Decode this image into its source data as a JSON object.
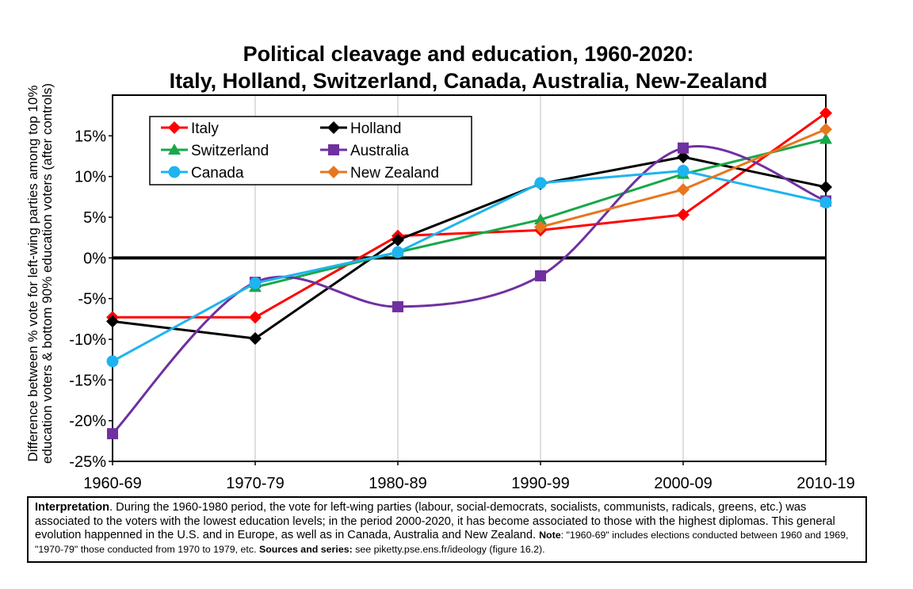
{
  "chart_data": {
    "type": "line",
    "title_lines": [
      "Political cleavage and education, 1960-2020:",
      "Italy, Holland, Switzerland, Canada, Australia, New-Zealand"
    ],
    "ylabel_lines": [
      "Difference between % vote for left-wing parties among top 10%",
      "education voters & bottom 90% education voters (after controls)"
    ],
    "categories": [
      "1960-69",
      "1970-79",
      "1980-89",
      "1990-99",
      "2000-09",
      "2010-19"
    ],
    "ylim": [
      -25,
      20
    ],
    "ytick_values": [
      15,
      10,
      5,
      0,
      -5,
      -10,
      -15,
      -20,
      -25
    ],
    "ytick_labels": [
      "15%",
      "10%",
      "5%",
      "0%",
      "-5%",
      "-10%",
      "-15%",
      "-20%",
      "-25%"
    ],
    "grid": "vertical",
    "legend_position": "top-left",
    "series": [
      {
        "name": "Italy",
        "color": "#ff0000",
        "marker": "diamond",
        "smooth": false,
        "values": [
          -7.3,
          -7.3,
          2.7,
          3.4,
          5.3,
          17.8
        ]
      },
      {
        "name": "Holland",
        "color": "#000000",
        "marker": "diamond",
        "smooth": false,
        "values": [
          -7.8,
          -9.9,
          2.2,
          9.1,
          12.4,
          8.7
        ]
      },
      {
        "name": "Switzerland",
        "color": "#18a84a",
        "marker": "triangle",
        "smooth": false,
        "values": [
          null,
          -3.6,
          0.7,
          4.7,
          10.3,
          14.6
        ]
      },
      {
        "name": "Australia",
        "color": "#7030a0",
        "marker": "square",
        "smooth": true,
        "values": [
          -21.6,
          -3.0,
          -6.0,
          -2.2,
          13.5,
          7.0
        ]
      },
      {
        "name": "Canada",
        "color": "#1eb4f0",
        "marker": "circle",
        "smooth": false,
        "values": [
          -12.7,
          -3.1,
          0.7,
          9.2,
          10.7,
          6.8
        ]
      },
      {
        "name": "New Zealand",
        "color": "#e8761e",
        "marker": "diamond",
        "smooth": false,
        "values": [
          null,
          null,
          null,
          3.8,
          8.4,
          15.8
        ]
      }
    ]
  },
  "note": {
    "interp_label": "Interpretation",
    "interp_text": ". During the 1960-1980 period, the vote for left-wing parties (labour, social-democrats, socialists, communists, radicals, greens, etc.) was associated to the voters with the lowest education levels; in the period 2000-2020, it has become associated to those with the highest diplomas. This general evolution happenned in the U.S. and in Europe, as well as in Canada, Australia and New Zealand. ",
    "note_label": "Note",
    "note_text": ": \"1960-69\" includes elections conducted between 1960 and 1969, \"1970-79\"  those conducted from 1970 to 1979, etc. ",
    "sources_label": "Sources and series:",
    "sources_text": " see piketty.pse.ens.fr/ideology (figure 16.2)."
  }
}
